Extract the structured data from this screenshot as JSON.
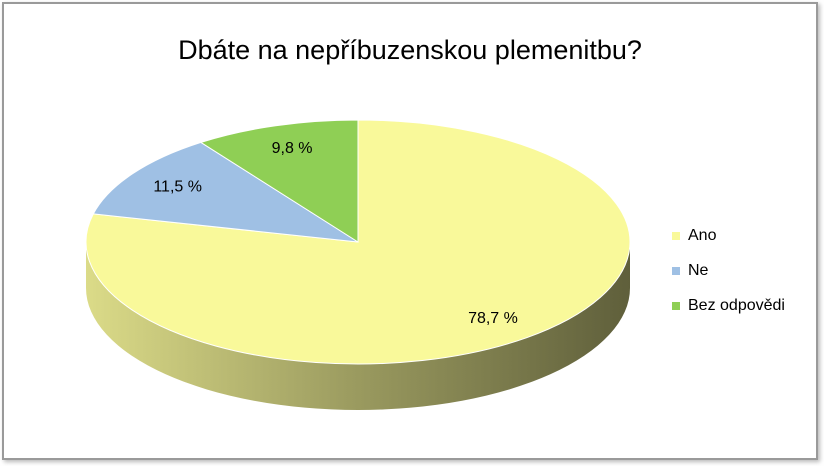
{
  "chart_data": {
    "type": "pie",
    "title": "Dbáte na nepříbuzenskou plemenitbu?",
    "categories": [
      "Ano",
      "Ne",
      "Bez odpovědi"
    ],
    "values": [
      78.7,
      11.5,
      9.8
    ],
    "value_labels": [
      "78,7 %",
      "11,5 %",
      "9,8 %"
    ],
    "colors": [
      "#f9f99a",
      "#9fc0e4",
      "#8fcf55"
    ],
    "legend": "right"
  }
}
